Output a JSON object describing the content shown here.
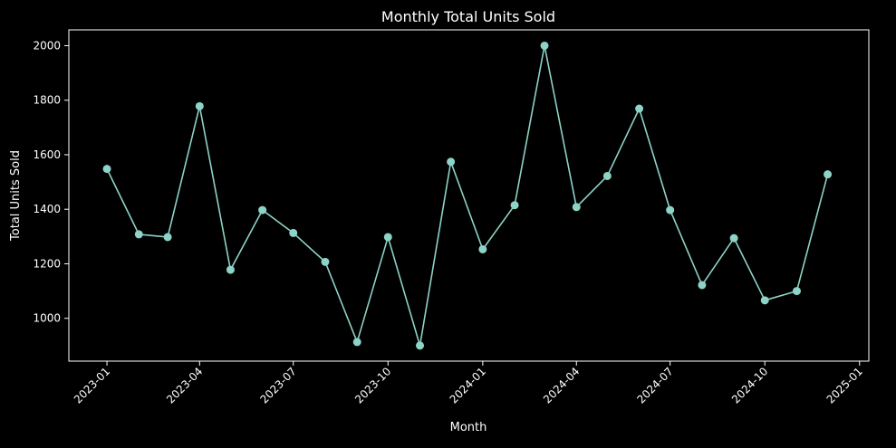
{
  "chart_data": {
    "type": "line",
    "title": "Monthly Total Units Sold",
    "xlabel": "Month",
    "ylabel": "Total Units Sold",
    "x_ticks": [
      "2023-01",
      "2023-04",
      "2023-07",
      "2023-10",
      "2024-01",
      "2024-04",
      "2024-07",
      "2024-10",
      "2025-01"
    ],
    "y_ticks": [
      1000,
      1200,
      1400,
      1600,
      1800,
      2000
    ],
    "ylim": [
      843,
      2058
    ],
    "xlim": [
      "2022-11-25",
      "2025-01-10"
    ],
    "grid": false,
    "series": [
      {
        "color": "#8dd3c7",
        "points": [
          {
            "x": "2023-01-01",
            "y": 1548
          },
          {
            "x": "2023-02-01",
            "y": 1308
          },
          {
            "x": "2023-03-01",
            "y": 1298
          },
          {
            "x": "2023-04-01",
            "y": 1778
          },
          {
            "x": "2023-05-01",
            "y": 1178
          },
          {
            "x": "2023-06-01",
            "y": 1397
          },
          {
            "x": "2023-07-01",
            "y": 1313
          },
          {
            "x": "2023-08-01",
            "y": 1207
          },
          {
            "x": "2023-09-01",
            "y": 913
          },
          {
            "x": "2023-10-01",
            "y": 1298
          },
          {
            "x": "2023-11-01",
            "y": 900
          },
          {
            "x": "2023-12-01",
            "y": 1574
          },
          {
            "x": "2024-01-01",
            "y": 1253
          },
          {
            "x": "2024-02-01",
            "y": 1415
          },
          {
            "x": "2024-03-01",
            "y": 2000
          },
          {
            "x": "2024-04-01",
            "y": 1408
          },
          {
            "x": "2024-05-01",
            "y": 1522
          },
          {
            "x": "2024-06-01",
            "y": 1769
          },
          {
            "x": "2024-07-01",
            "y": 1397
          },
          {
            "x": "2024-08-01",
            "y": 1122
          },
          {
            "x": "2024-09-01",
            "y": 1294
          },
          {
            "x": "2024-10-01",
            "y": 1066
          },
          {
            "x": "2024-11-01",
            "y": 1100
          },
          {
            "x": "2024-12-01",
            "y": 1528
          }
        ]
      }
    ]
  }
}
